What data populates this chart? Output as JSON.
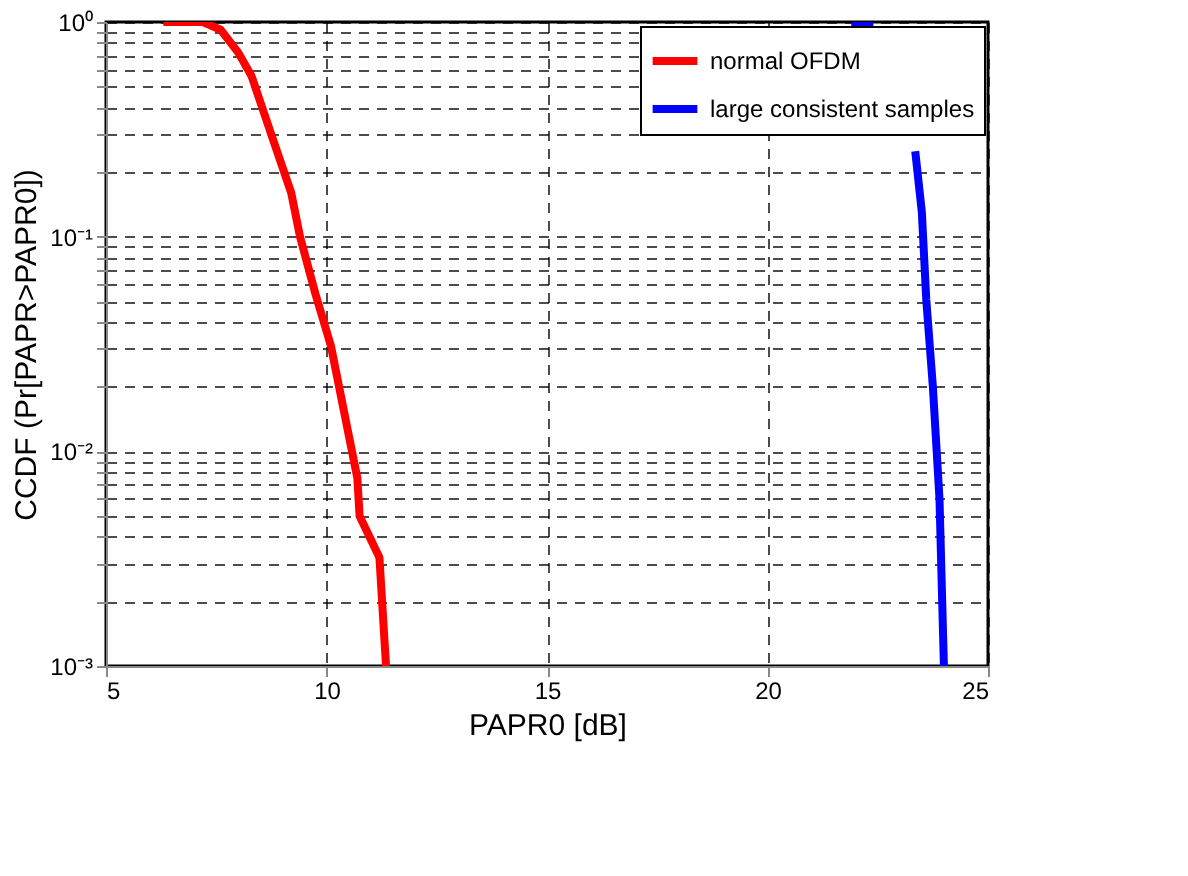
{
  "chart_data": {
    "type": "line",
    "xlabel": "PAPR0 [dB]",
    "ylabel": "CCDF (Pr[PAPR>PAPR0])",
    "xlim": [
      5,
      25
    ],
    "xticks": [
      5,
      10,
      15,
      20,
      25
    ],
    "ylim": [
      0.001,
      1
    ],
    "log": "y",
    "grid": true,
    "legend": "top right",
    "line_style": "solid",
    "marker": "none",
    "yticks": [
      {
        "value": 0.001,
        "label": "10⁻³"
      },
      {
        "value": 0.002,
        "label": null
      },
      {
        "value": 0.003,
        "label": null
      },
      {
        "value": 0.004,
        "label": null
      },
      {
        "value": 0.005,
        "label": null
      },
      {
        "value": 0.006,
        "label": null
      },
      {
        "value": 0.007,
        "label": null
      },
      {
        "value": 0.008,
        "label": null
      },
      {
        "value": 0.009,
        "label": null
      },
      {
        "value": 0.01,
        "label": "10⁻²"
      },
      {
        "value": 0.02,
        "label": null
      },
      {
        "value": 0.03,
        "label": null
      },
      {
        "value": 0.04,
        "label": null
      },
      {
        "value": 0.05,
        "label": null
      },
      {
        "value": 0.06,
        "label": null
      },
      {
        "value": 0.07,
        "label": null
      },
      {
        "value": 0.08,
        "label": null
      },
      {
        "value": 0.09,
        "label": null
      },
      {
        "value": 0.1,
        "label": "10⁻¹"
      },
      {
        "value": 0.2,
        "label": null
      },
      {
        "value": 0.3,
        "label": null
      },
      {
        "value": 0.4,
        "label": null
      },
      {
        "value": 0.5,
        "label": null
      },
      {
        "value": 0.6,
        "label": null
      },
      {
        "value": 0.7,
        "label": null
      },
      {
        "value": 0.8,
        "label": null
      },
      {
        "value": 0.9,
        "label": null
      },
      {
        "value": 1,
        "label": "10⁰"
      }
    ],
    "series": [
      {
        "name": "normal OFDM",
        "color": "#ff0000",
        "x": [
          6.3,
          7.2,
          7.6,
          8.0,
          8.3,
          8.7,
          9.2,
          9.4,
          9.75,
          10.1,
          10.5,
          10.7,
          10.75,
          11.2,
          11.35
        ],
        "values": [
          1,
          1,
          0.92,
          0.72,
          0.56,
          0.32,
          0.16,
          0.1,
          0.054,
          0.031,
          0.012,
          0.0075,
          0.005,
          0.0032,
          0.001
        ]
      },
      {
        "name": "large consistent samples",
        "color": "#0000ff",
        "x": [
          21.9,
          22.4,
          22.75,
          23.2,
          23.35,
          23.5,
          23.6,
          23.75,
          23.9,
          24.0
        ],
        "values": [
          1,
          1,
          null,
          null,
          0.25,
          0.13,
          0.051,
          0.02,
          0.006,
          0.001
        ]
      }
    ]
  }
}
